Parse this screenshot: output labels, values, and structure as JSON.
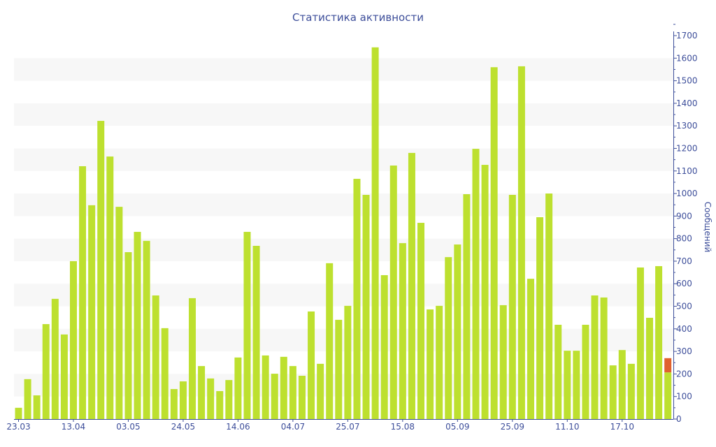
{
  "chart_data": {
    "type": "bar",
    "title": "Статистика активности",
    "ylabel": "Сообщений",
    "xlabel": "",
    "ylim": [
      0,
      1700
    ],
    "yticks": [
      0,
      100,
      200,
      300,
      400,
      500,
      600,
      700,
      800,
      900,
      1000,
      1100,
      1200,
      1300,
      1400,
      1500,
      1600,
      1700
    ],
    "xtick_labels": [
      {
        "bar_index": 0,
        "label": "23.03"
      },
      {
        "bar_index": 6,
        "label": "13.04"
      },
      {
        "bar_index": 12,
        "label": "03.05"
      },
      {
        "bar_index": 18,
        "label": "24.05"
      },
      {
        "bar_index": 24,
        "label": "14.06"
      },
      {
        "bar_index": 30,
        "label": "04.07"
      },
      {
        "bar_index": 36,
        "label": "25.07"
      },
      {
        "bar_index": 42,
        "label": "15.08"
      },
      {
        "bar_index": 48,
        "label": "05.09"
      },
      {
        "bar_index": 54,
        "label": "25.09"
      },
      {
        "bar_index": 60,
        "label": "11.10"
      },
      {
        "bar_index": 66,
        "label": "17.10"
      }
    ],
    "grid": "alternating horizontal bands",
    "colors": {
      "bar": "#bde02f",
      "highlight": "#e0622e",
      "axis": "#3d4e9a",
      "band": "#f7f7f7"
    },
    "series": [
      {
        "name": "Сообщений",
        "values": [
          50,
          177,
          105,
          421,
          533,
          375,
          700,
          1121,
          948,
          1322,
          1164,
          941,
          740,
          830,
          790,
          548,
          403,
          133,
          167,
          536,
          235,
          180,
          124,
          173,
          273,
          830,
          768,
          282,
          201,
          276,
          235,
          192,
          477,
          245,
          691,
          440,
          502,
          1065,
          994,
          1648,
          638,
          1124,
          780,
          1180,
          870,
          486,
          502,
          718,
          774,
          997,
          1198,
          1127,
          1560,
          505,
          994,
          1564,
          622,
          895,
          1000,
          418,
          303,
          303,
          418,
          548,
          539,
          238,
          306,
          245,
          672,
          449,
          678,
          207
        ]
      },
      {
        "name": "highlight",
        "values": [
          0,
          0,
          0,
          0,
          0,
          0,
          0,
          0,
          0,
          0,
          0,
          0,
          0,
          0,
          0,
          0,
          0,
          0,
          0,
          0,
          0,
          0,
          0,
          0,
          0,
          0,
          0,
          0,
          0,
          0,
          0,
          0,
          0,
          0,
          0,
          0,
          0,
          0,
          0,
          0,
          0,
          0,
          0,
          0,
          0,
          0,
          0,
          0,
          0,
          0,
          0,
          0,
          0,
          0,
          0,
          0,
          0,
          0,
          0,
          0,
          0,
          0,
          0,
          0,
          0,
          0,
          0,
          0,
          0,
          0,
          0,
          63
        ]
      }
    ]
  }
}
